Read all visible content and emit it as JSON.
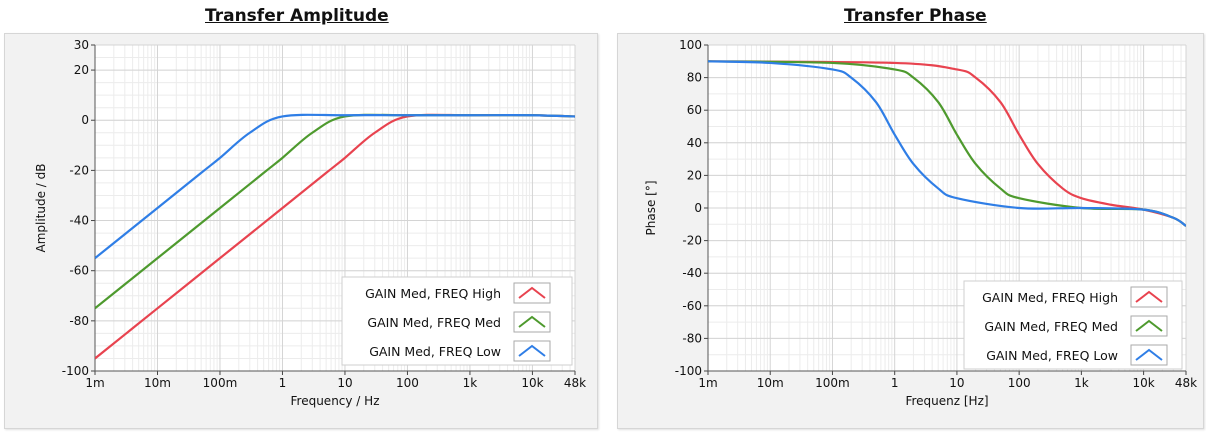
{
  "chart_data": [
    {
      "type": "line",
      "title": "Transfer Amplitude",
      "xlabel": "Frequency / Hz",
      "ylabel": "Amplitude / dB",
      "xscale": "log",
      "xlim": [
        0.001,
        48000
      ],
      "ylim": [
        -100,
        30
      ],
      "x_tick_labels": [
        "1m",
        "10m",
        "100m",
        "1",
        "10",
        "100",
        "1k",
        "10k",
        "48k"
      ],
      "y_tick_labels": [
        "30",
        "20",
        "0",
        "-20",
        "-40",
        "-60",
        "-80",
        "-100"
      ],
      "grid": true,
      "legend_position": "bottom-right",
      "series": [
        {
          "name": "GAIN Med, FREQ High",
          "color": "#e8434f",
          "x": [
            0.001,
            0.01,
            0.1,
            1,
            5,
            10,
            30,
            100,
            1000,
            10000,
            48000
          ],
          "y": [
            -95,
            -75,
            -55,
            -35,
            -21,
            -15,
            -5,
            1.5,
            2,
            2,
            1.5
          ]
        },
        {
          "name": "GAIN Med, FREQ Med",
          "color": "#4e9a2e",
          "x": [
            0.001,
            0.01,
            0.1,
            0.5,
            1,
            3,
            10,
            100,
            1000,
            10000,
            48000
          ],
          "y": [
            -75,
            -55,
            -35,
            -21,
            -15,
            -5,
            1.5,
            2,
            2,
            2,
            1.5
          ]
        },
        {
          "name": "GAIN Med, FREQ Low",
          "color": "#2f7ee6",
          "x": [
            0.001,
            0.01,
            0.05,
            0.1,
            0.3,
            1,
            10,
            100,
            1000,
            10000,
            48000
          ],
          "y": [
            -55,
            -35,
            -21,
            -15,
            -5,
            1.5,
            2,
            2,
            2,
            2,
            1.5
          ]
        }
      ]
    },
    {
      "type": "line",
      "title": "Transfer Phase",
      "xlabel": "Frequenz [Hz]",
      "ylabel": "Phase [°]",
      "xscale": "log",
      "xlim": [
        0.001,
        48000
      ],
      "ylim": [
        -100,
        100
      ],
      "x_tick_labels": [
        "1m",
        "10m",
        "100m",
        "1",
        "10",
        "100",
        "1k",
        "10k",
        "48k"
      ],
      "y_tick_labels": [
        "100",
        "80",
        "60",
        "40",
        "20",
        "0",
        "-20",
        "-40",
        "-60",
        "-80",
        "-100"
      ],
      "grid": true,
      "legend_position": "bottom-right",
      "series": [
        {
          "name": "GAIN Med, FREQ High",
          "color": "#e8434f",
          "x": [
            0.001,
            1,
            10,
            20,
            50,
            100,
            200,
            500,
            1000,
            3000,
            10000,
            30000,
            48000
          ],
          "y": [
            90,
            89,
            85,
            80,
            65,
            45,
            27,
            12,
            6,
            2,
            -1,
            -6,
            -11
          ]
        },
        {
          "name": "GAIN Med, FREQ Med",
          "color": "#4e9a2e",
          "x": [
            0.001,
            0.1,
            1,
            2,
            5,
            10,
            20,
            50,
            100,
            1000,
            10000,
            30000,
            48000
          ],
          "y": [
            90,
            89,
            85,
            80,
            65,
            45,
            27,
            12,
            6,
            0,
            -1,
            -6,
            -11
          ]
        },
        {
          "name": "GAIN Med, FREQ Low",
          "color": "#2f7ee6",
          "x": [
            0.001,
            0.01,
            0.1,
            0.2,
            0.5,
            1,
            2,
            5,
            10,
            100,
            1000,
            10000,
            30000,
            48000
          ],
          "y": [
            90,
            89,
            85,
            80,
            65,
            45,
            27,
            12,
            6,
            0,
            0,
            -1,
            -6,
            -11
          ]
        }
      ]
    }
  ]
}
